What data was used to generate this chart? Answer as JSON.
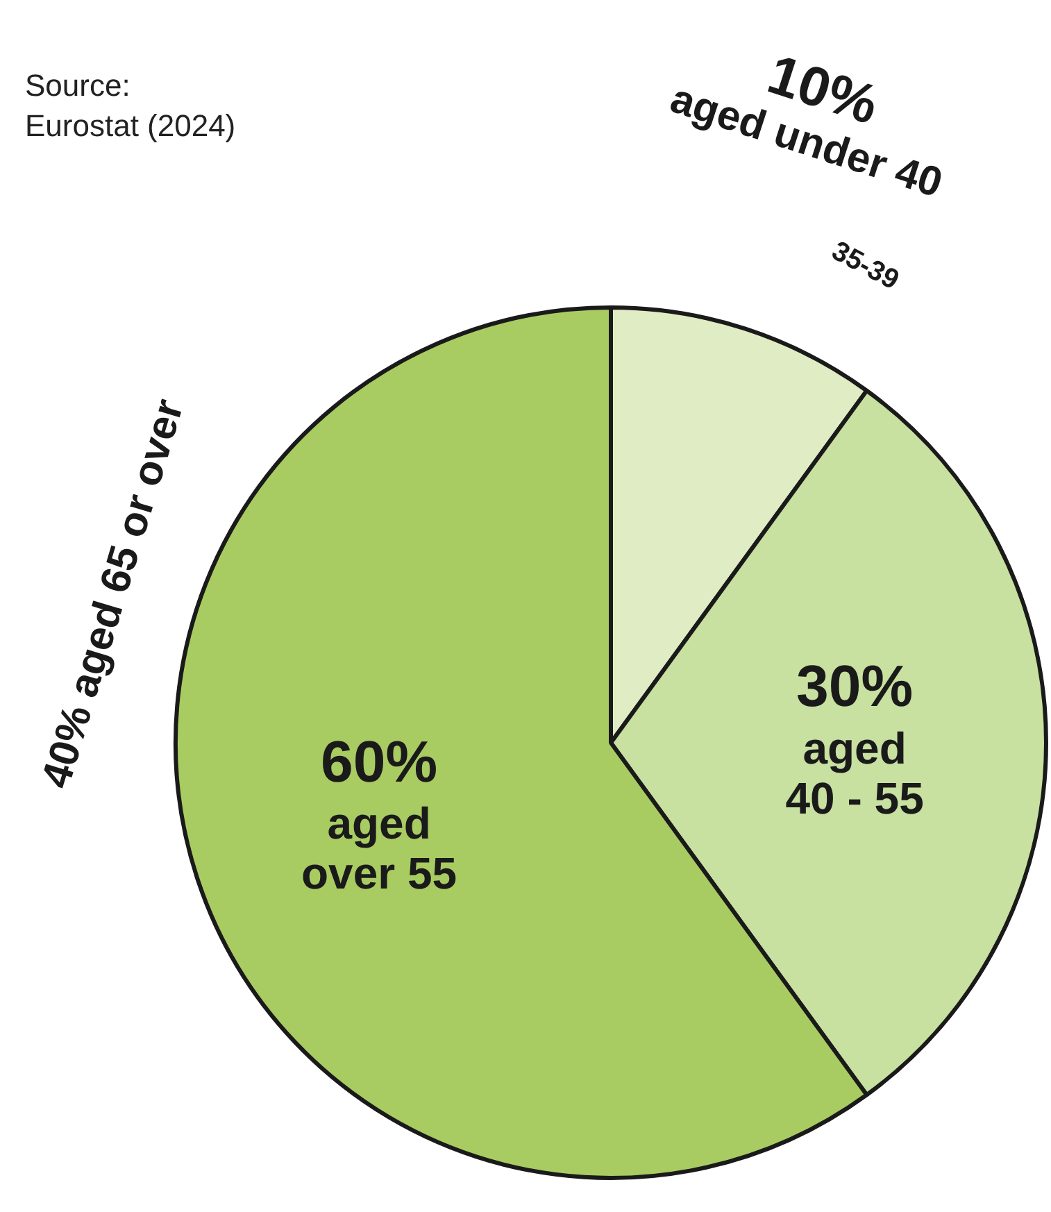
{
  "chart_data": {
    "type": "pie",
    "categories": [
      "aged under 40",
      "aged 40 - 55",
      "aged over 55"
    ],
    "values": [
      10,
      30,
      60
    ],
    "colors": [
      "#e0ecc4",
      "#c8e0a0",
      "#a8cc62"
    ],
    "value_labels": [
      "10%",
      "30%",
      "60%"
    ],
    "legend": false,
    "annotations": [
      "Source:\nEurostat (2024)",
      "40% aged 65 or over",
      "35-39"
    ]
  }
}
